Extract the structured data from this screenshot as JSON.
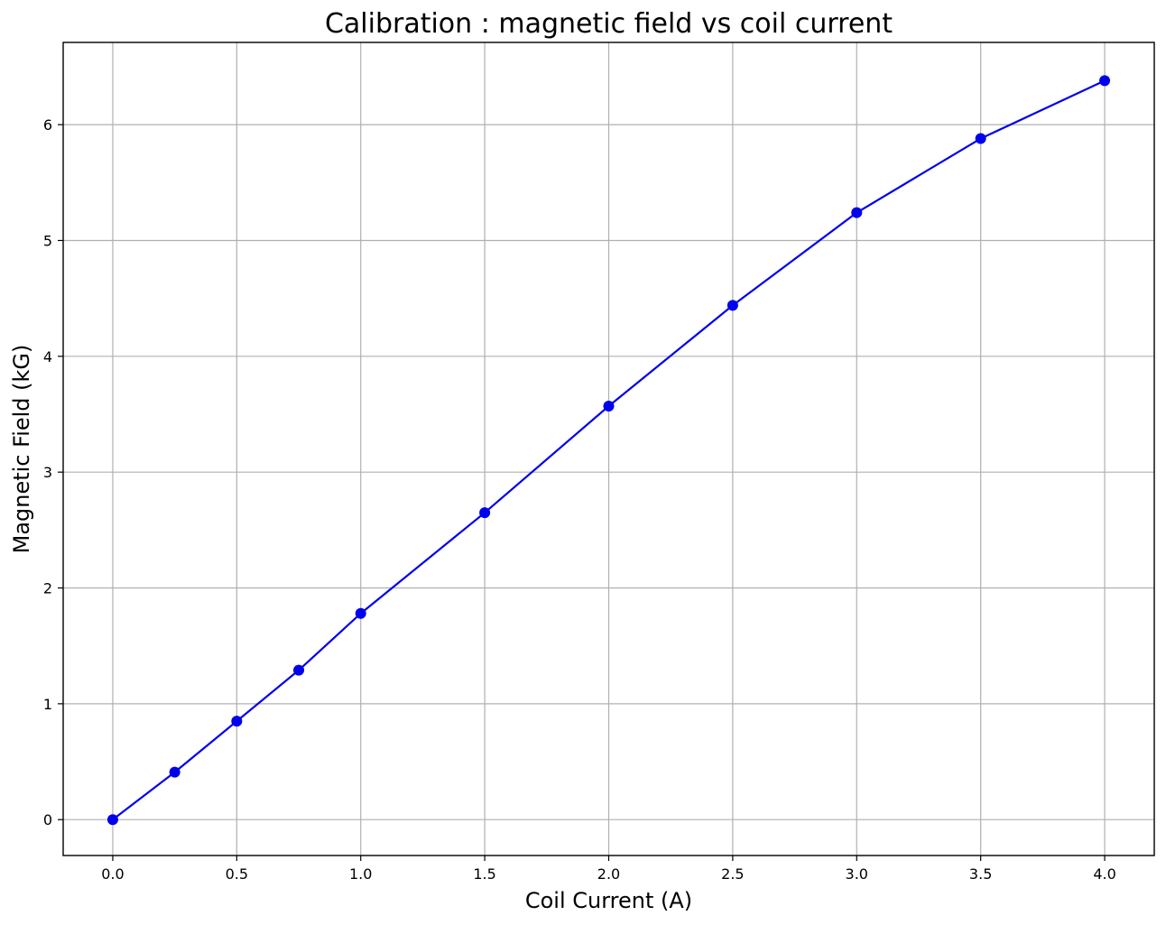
{
  "chart_data": {
    "type": "line",
    "title": "Calibration : magnetic field vs coil current",
    "xlabel": "Coil Current (A)",
    "ylabel": "Magnetic Field (kG)",
    "xlim": [
      -0.2,
      4.2
    ],
    "ylim": [
      -0.31,
      6.71
    ],
    "xticks": [
      0.0,
      0.5,
      1.0,
      1.5,
      2.0,
      2.5,
      3.0,
      3.5,
      4.0
    ],
    "xtick_labels": [
      "0.0",
      "0.5",
      "1.0",
      "1.5",
      "2.0",
      "2.5",
      "3.0",
      "3.5",
      "4.0"
    ],
    "yticks": [
      0,
      1,
      2,
      3,
      4,
      5,
      6
    ],
    "ytick_labels": [
      "0",
      "1",
      "2",
      "3",
      "4",
      "5",
      "6"
    ],
    "grid": true,
    "legend": "none",
    "series": [
      {
        "color": "#0000ee",
        "marker": "circle",
        "x": [
          0.0,
          0.25,
          0.5,
          0.75,
          1.0,
          1.5,
          2.0,
          2.5,
          3.0,
          3.5,
          4.0
        ],
        "y": [
          0.0,
          0.41,
          0.85,
          1.29,
          1.78,
          2.65,
          3.57,
          4.44,
          5.24,
          5.88,
          6.38
        ]
      }
    ]
  }
}
